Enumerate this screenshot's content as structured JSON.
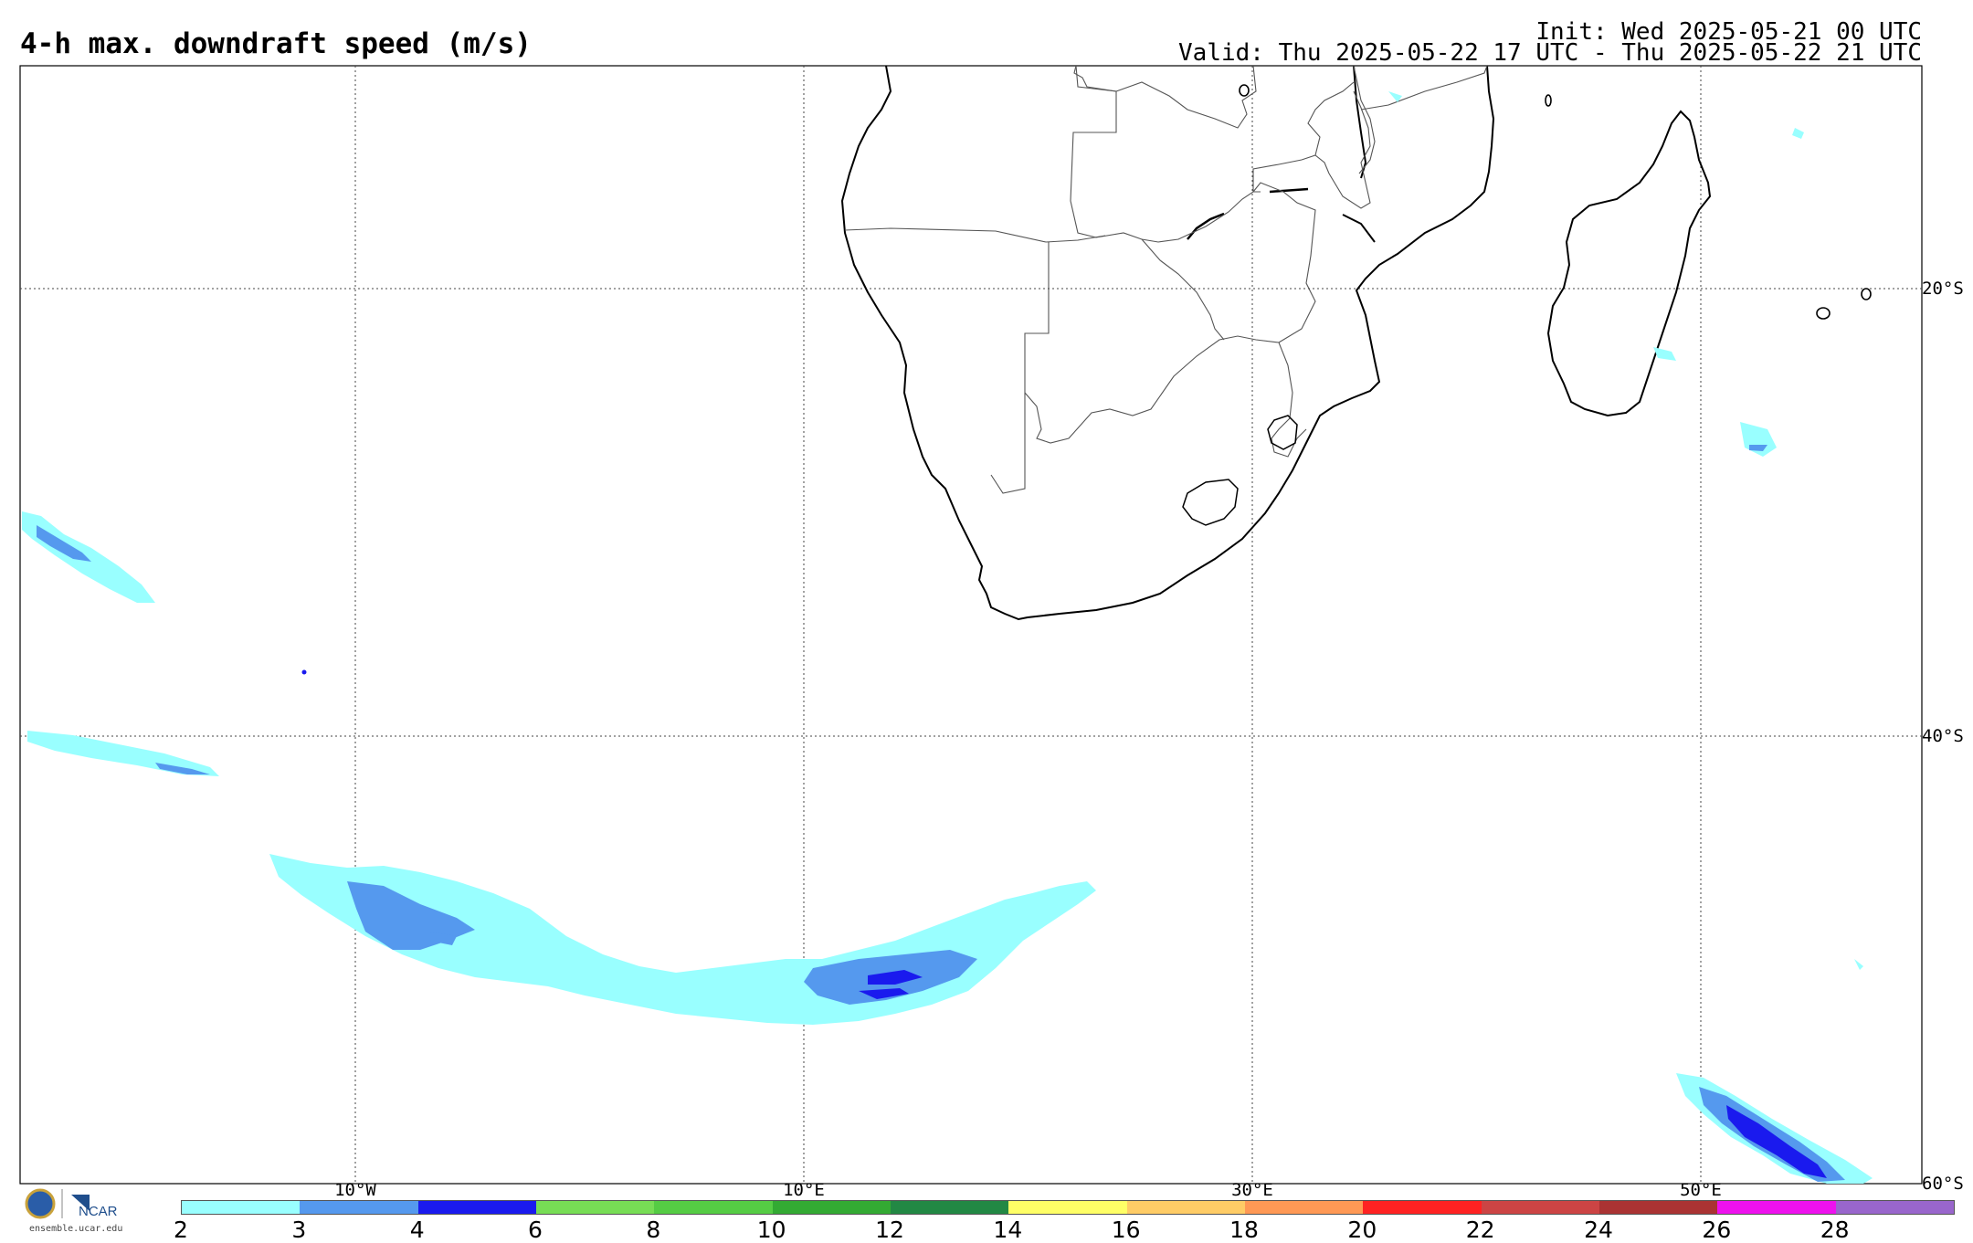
{
  "header": {
    "title": "4-h max. downdraft speed (m/s)",
    "init": "Init: Wed 2025-05-21 00 UTC",
    "valid": "Valid: Thu 2025-05-22 17 UTC - Thu 2025-05-22 21 UTC"
  },
  "map": {
    "region": "Southern Africa & South Atlantic / SW Indian Ocean",
    "lon_labels": [
      "10°W",
      "10°E",
      "30°E",
      "50°E"
    ],
    "lat_labels": [
      "20°S",
      "40°S",
      "60°S"
    ],
    "gridlines": "dotted"
  },
  "colorbar": {
    "ticks": [
      "2",
      "3",
      "4",
      "6",
      "8",
      "10",
      "12",
      "14",
      "16",
      "18",
      "20",
      "22",
      "24",
      "26",
      "28"
    ],
    "colors": [
      "#99ffff",
      "#5599ee",
      "#1a1aee",
      "#77dd55",
      "#55cc44",
      "#33aa33",
      "#228844",
      "#ffff66",
      "#ffcc66",
      "#ff9955",
      "#ff2222",
      "#cc4444",
      "#aa3333",
      "#ee11ee",
      "#9966cc"
    ]
  },
  "logo": {
    "text": "NCAR",
    "url": "ensemble.ucar.edu"
  }
}
